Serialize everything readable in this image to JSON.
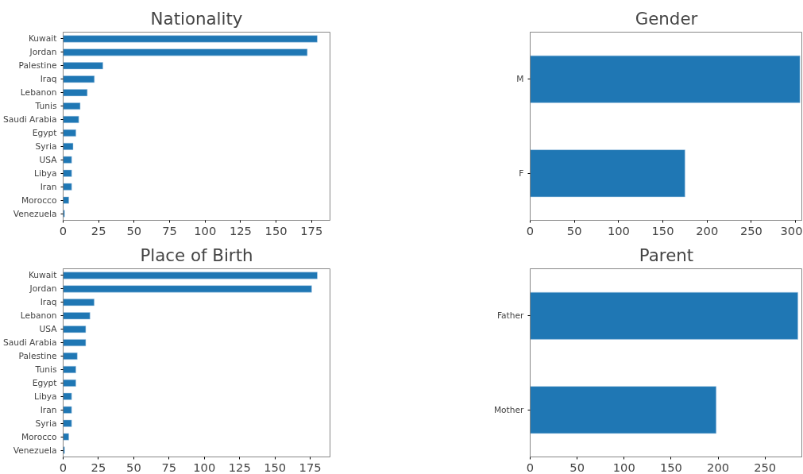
{
  "chart_data": [
    {
      "type": "bar",
      "orientation": "horizontal",
      "title": "Nationality",
      "categories": [
        "Kuwait",
        "Jordan",
        "Palestine",
        "Iraq",
        "Lebanon",
        "Tunis",
        "Saudi Arabia",
        "Egypt",
        "Syria",
        "USA",
        "Libya",
        "Iran",
        "Morocco",
        "Venezuela"
      ],
      "values": [
        179,
        172,
        28,
        22,
        17,
        12,
        11,
        9,
        7,
        6,
        6,
        6,
        4,
        1
      ],
      "color": "#1f77b4",
      "xlim": [
        0,
        188
      ],
      "xticks": [
        0,
        25,
        50,
        75,
        100,
        125,
        150,
        175
      ],
      "grid": false,
      "legend": false
    },
    {
      "type": "bar",
      "orientation": "horizontal",
      "title": "Gender",
      "categories": [
        "M",
        "F"
      ],
      "values": [
        305,
        175
      ],
      "color": "#1f77b4",
      "xlim": [
        0,
        308
      ],
      "xticks": [
        0,
        50,
        100,
        150,
        200,
        250,
        300
      ],
      "grid": false,
      "legend": false
    },
    {
      "type": "bar",
      "orientation": "horizontal",
      "title": "Place of Birth",
      "categories": [
        "Kuwait",
        "Jordan",
        "Iraq",
        "Lebanon",
        "USA",
        "Saudi Arabia",
        "Palestine",
        "Tunis",
        "Egypt",
        "Libya",
        "Iran",
        "Syria",
        "Morocco",
        "Venezuela"
      ],
      "values": [
        180,
        176,
        22,
        19,
        16,
        16,
        10,
        9,
        9,
        6,
        6,
        6,
        4,
        1
      ],
      "color": "#1f77b4",
      "xlim": [
        0,
        189
      ],
      "xticks": [
        0,
        25,
        50,
        75,
        100,
        125,
        150,
        175
      ],
      "grid": false,
      "legend": false
    },
    {
      "type": "bar",
      "orientation": "horizontal",
      "title": "Parent",
      "categories": [
        "Father",
        "Mother"
      ],
      "values": [
        285,
        198
      ],
      "color": "#1f77b4",
      "xlim": [
        0,
        290
      ],
      "xticks": [
        0,
        50,
        100,
        150,
        200,
        250
      ],
      "grid": false,
      "legend": false
    }
  ]
}
